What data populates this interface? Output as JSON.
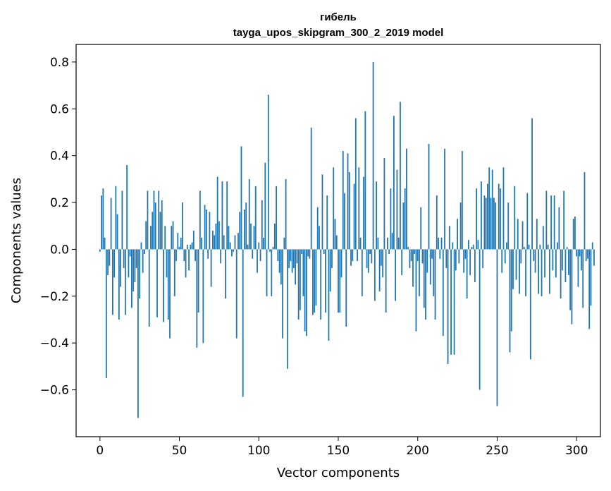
{
  "chart_data": {
    "type": "bar",
    "title": "гибель",
    "subtitle": "tayga_upos_skipgram_300_2_2019 model",
    "xlabel": "Vector components",
    "ylabel": "Components values",
    "xlim": [
      -15,
      315
    ],
    "ylim": [
      -0.8,
      0.875
    ],
    "xticks": [
      0,
      50,
      100,
      150,
      200,
      250,
      300
    ],
    "yticks": [
      -0.6,
      -0.4,
      -0.2,
      0.0,
      0.2,
      0.4,
      0.6,
      0.8
    ],
    "ytick_labels": [
      "−0.6",
      "−0.4",
      "−0.2",
      "0.0",
      "0.2",
      "0.4",
      "0.6",
      "0.8"
    ],
    "xtick_labels": [
      "0",
      "50",
      "100",
      "150",
      "200",
      "250",
      "300"
    ],
    "bar_color": "#1f77b4",
    "values": [
      -0.01,
      0.23,
      0.26,
      0.05,
      -0.55,
      -0.11,
      -0.07,
      0.22,
      -0.28,
      -0.12,
      0.27,
      0.15,
      -0.3,
      -0.16,
      0.25,
      -0.08,
      -0.28,
      0.36,
      -0.12,
      -0.03,
      -0.25,
      -0.18,
      -0.14,
      -0.08,
      -0.72,
      -0.21,
      0.03,
      -0.1,
      -0.02,
      0.12,
      0.25,
      -0.33,
      0.1,
      0.16,
      0.25,
      0.2,
      -0.29,
      0.25,
      0.16,
      0.21,
      -0.31,
      0.1,
      -0.12,
      -0.3,
      -0.38,
      0.1,
      0.12,
      -0.2,
      -0.05,
      0.07,
      0.01,
      0.05,
      0.2,
      -0.05,
      -0.12,
      0.02,
      -0.09,
      0.02,
      0.03,
      0.08,
      -0.05,
      -0.42,
      -0.27,
      0.25,
      0.05,
      -0.4,
      0.19,
      0.17,
      -0.04,
      0.16,
      -0.16,
      0.08,
      0.06,
      0.11,
      0.31,
      0.12,
      -0.06,
      0.29,
      0.06,
      -0.21,
      0.29,
      0.1,
      0.03,
      -0.03,
      -0.01,
      0.06,
      -0.38,
      0.07,
      0.16,
      0.44,
      -0.63,
      0.17,
      0.2,
      0.02,
      0.3,
      0.11,
      -0.04,
      0.1,
      0.27,
      -0.1,
      0.03,
      -0.05,
      0.21,
      0.05,
      0.37,
      -0.2,
      0.66,
      -0.01,
      -0.2,
      0.01,
      0.11,
      0.27,
      -0.05,
      -0.1,
      -0.15,
      -0.38,
      0.05,
      0.3,
      -0.51,
      -0.08,
      -0.05,
      -0.1,
      -0.08,
      -0.15,
      -0.06,
      -0.3,
      -0.26,
      -0.02,
      -0.2,
      -0.35,
      -0.37,
      -0.03,
      -0.04,
      0.52,
      -0.28,
      -0.27,
      -0.24,
      0.18,
      0.1,
      -0.3,
      0.32,
      -0.02,
      -0.27,
      0.23,
      -0.39,
      -0.18,
      -0.08,
      0.35,
      0.13,
      0.06,
      -0.27,
      -0.27,
      -0.12,
      0.42,
      0.24,
      -0.33,
      0.41,
      0.33,
      -0.07,
      -0.05,
      0.28,
      0.56,
      -0.05,
      0.35,
      0.05,
      -0.2,
      0.31,
      0.59,
      -0.08,
      -0.1,
      -0.02,
      -0.06,
      0.8,
      -0.22,
      0.29,
      0.05,
      -0.18,
      -0.07,
      -0.12,
      0.39,
      -0.27,
      0.05,
      -0.02,
      0.26,
      0.07,
      0.57,
      -0.22,
      0.34,
      0.05,
      0.63,
      -0.11,
      0.2,
      0.26,
      0.43,
      0.01,
      -0.08,
      -0.05,
      -0.16,
      -0.02,
      -0.35,
      -0.05,
      -0.2,
      0.18,
      -0.06,
      -0.25,
      -0.3,
      -0.1,
      0.45,
      -0.15,
      -0.04,
      -0.2,
      -0.3,
      0.23,
      0.05,
      -0.04,
      0.05,
      -0.37,
      0.43,
      -0.08,
      -0.49,
      0.1,
      -0.45,
      0.03,
      -0.45,
      -0.09,
      0.13,
      -0.06,
      0.2,
      0.42,
      -0.1,
      -0.04,
      -0.21,
      0.04,
      -0.11,
      0.01,
      0.02,
      -0.14,
      0.26,
      0.04,
      -0.6,
      0.29,
      -0.08,
      0.23,
      0.22,
      0.28,
      0.35,
      0.22,
      0.34,
      0.22,
      0.2,
      -0.67,
      0.28,
      0.26,
      -0.1,
      0.35,
      -0.06,
      0.03,
      0.2,
      -0.44,
      -0.35,
      -0.17,
      0.27,
      -0.13,
      0.13,
      -0.19,
      -0.06,
      0.12,
      0.01,
      -0.2,
      0.24,
      0.02,
      -0.47,
      0.56,
      -0.05,
      -0.1,
      0.13,
      -0.19,
      0.02,
      -0.2,
      0.1,
      -0.12,
      0.25,
      0.02,
      -0.19,
      0.23,
      -0.09,
      0.23,
      -0.12,
      0.03,
      0.18,
      -0.21,
      -0.09,
      0.25,
      -0.14,
      0.01,
      -0.11,
      -0.26,
      -0.32,
      0.13,
      0.14,
      -0.03,
      -0.16,
      -0.03,
      -0.09,
      -0.25,
      0.33,
      -0.05,
      -0.04,
      -0.34,
      -0.24,
      0.03,
      -0.07
    ]
  }
}
